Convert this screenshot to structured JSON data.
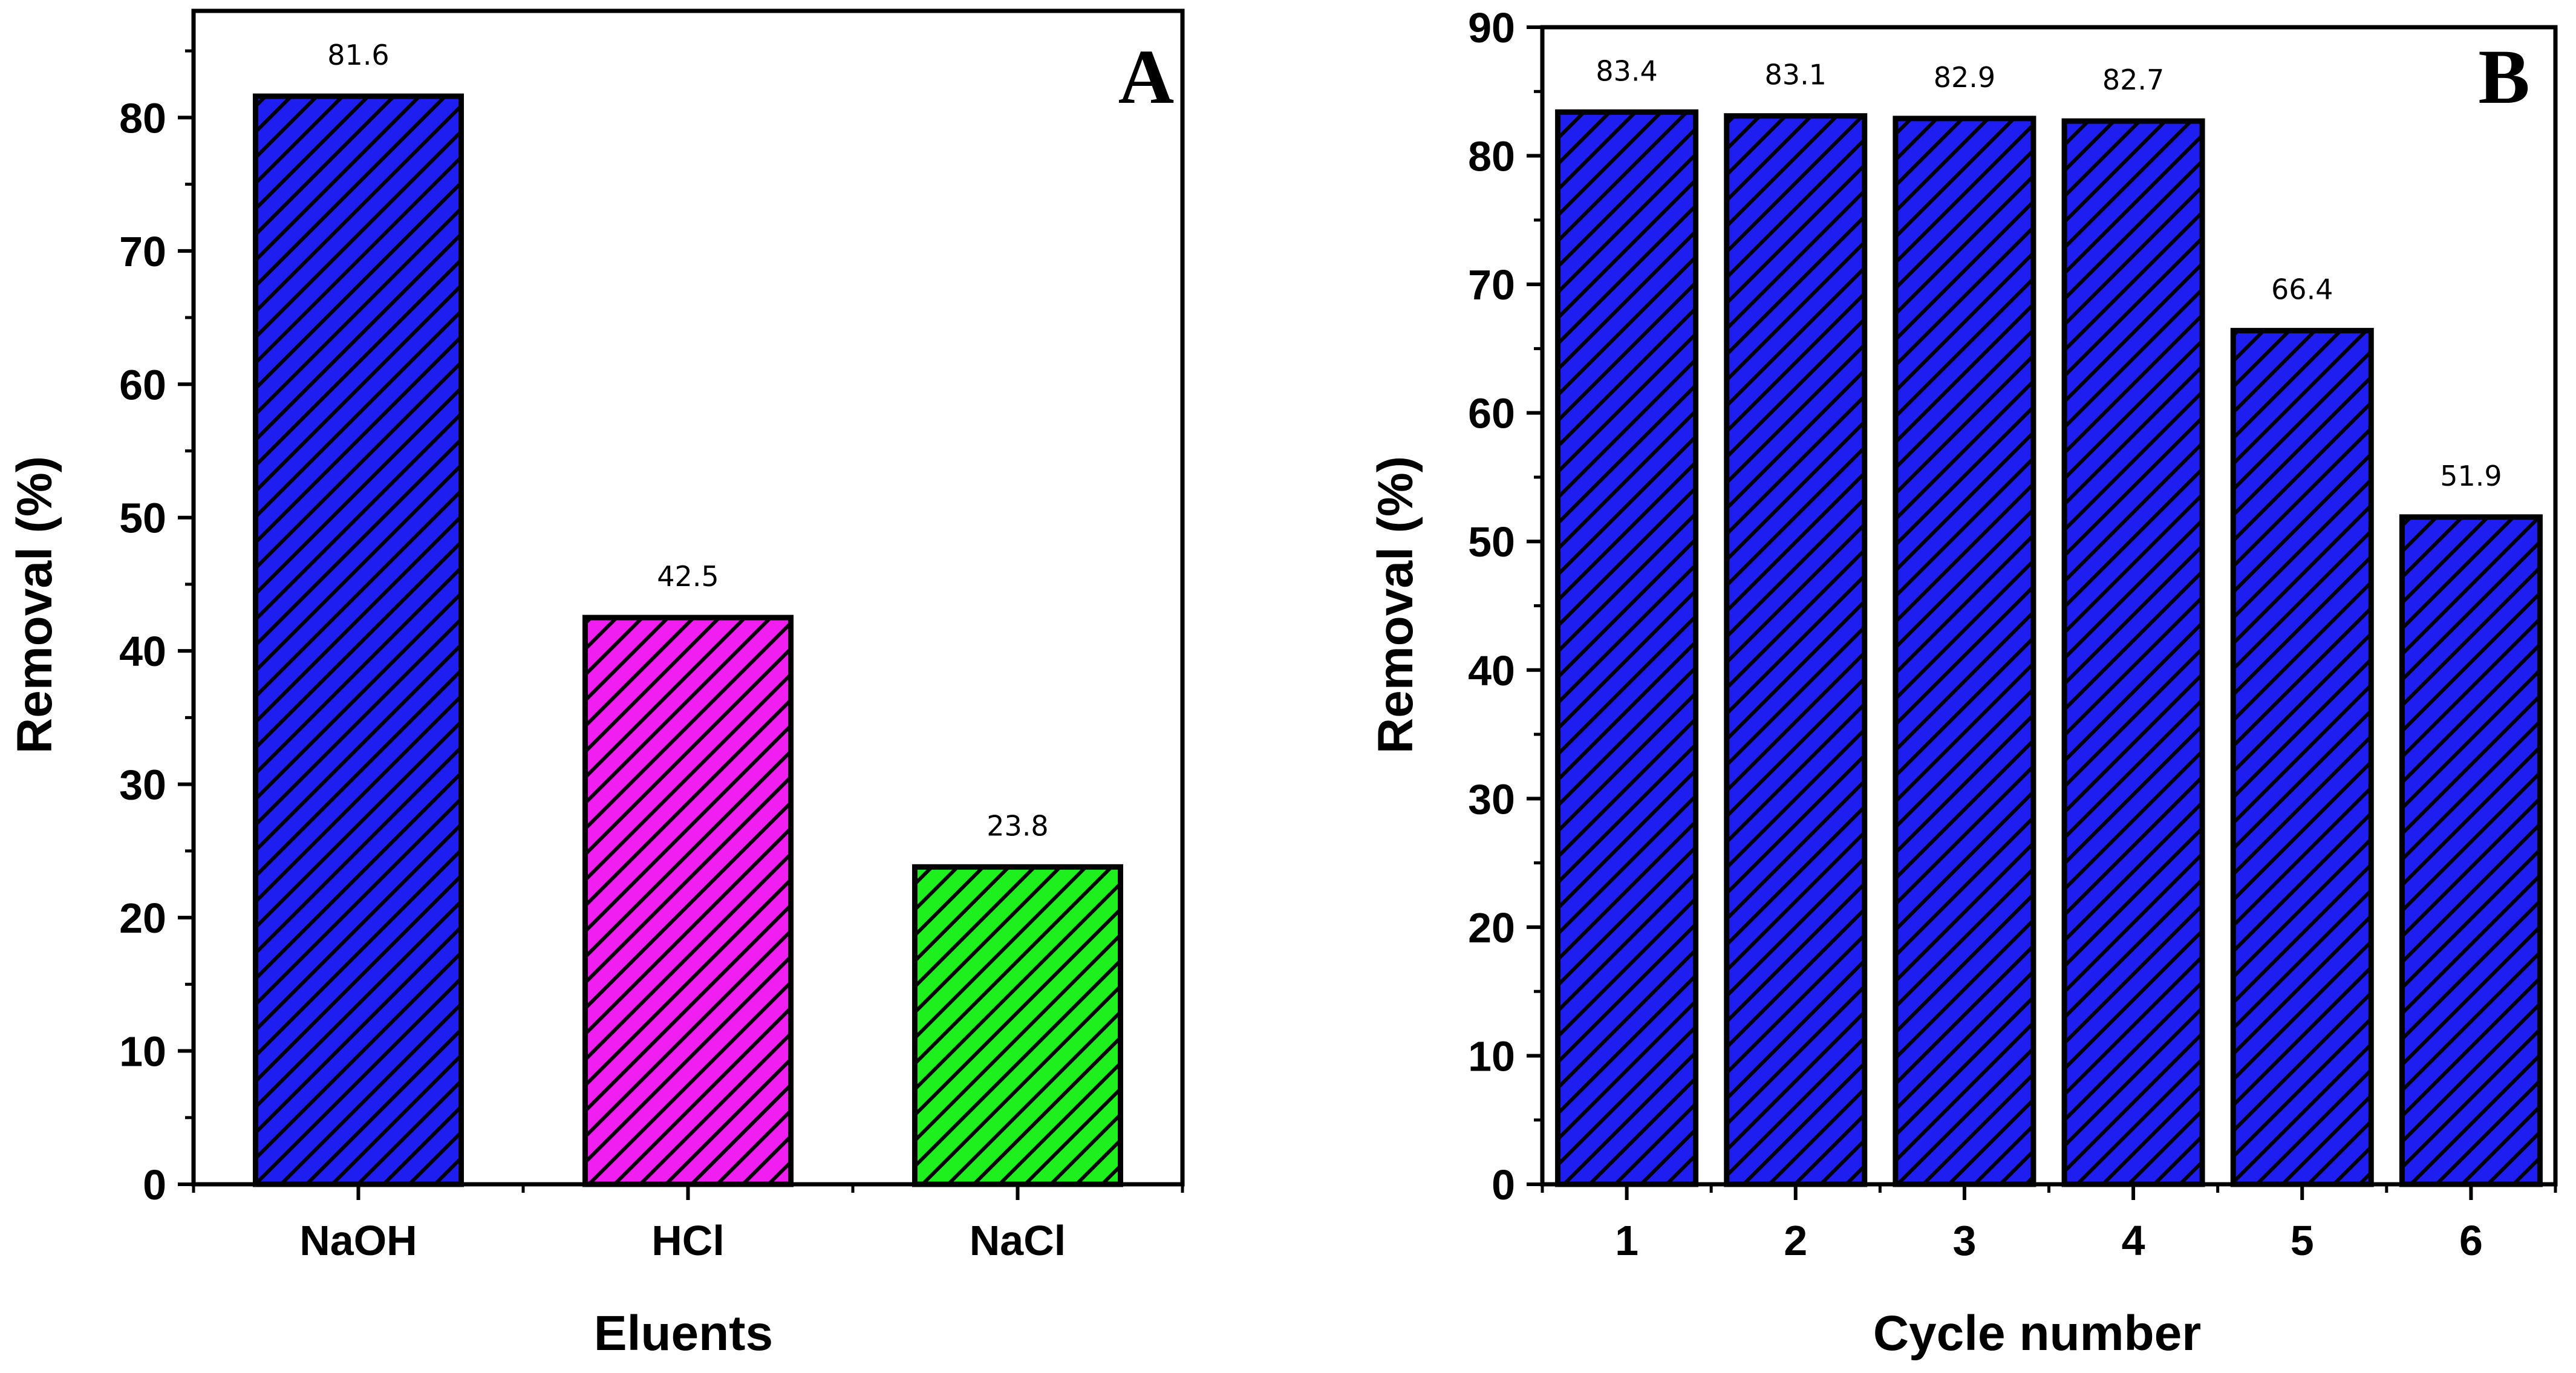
{
  "chart_data": [
    {
      "type": "bar",
      "panel": "A",
      "title": "",
      "xlabel": "Eluents",
      "ylabel": "Removal (%)",
      "ylim": [
        0,
        88
      ],
      "yticks": [
        0,
        10,
        20,
        30,
        40,
        50,
        60,
        70,
        80
      ],
      "categories": [
        "NaOH",
        "HCl",
        "NaCl"
      ],
      "values": [
        81.6,
        42.5,
        23.8
      ],
      "data_labels": [
        "81.6",
        "42.5",
        "23.8"
      ],
      "colors": [
        "#1e1ef0",
        "#f01ef0",
        "#1ef01e"
      ],
      "fill_pattern": "diagonal-hatch"
    },
    {
      "type": "bar",
      "panel": "B",
      "title": "",
      "xlabel": "Cycle number",
      "ylabel": "Removal (%)",
      "ylim": [
        0,
        90
      ],
      "yticks": [
        0,
        10,
        20,
        30,
        40,
        50,
        60,
        70,
        80,
        90
      ],
      "categories": [
        "1",
        "2",
        "3",
        "4",
        "5",
        "6"
      ],
      "values": [
        83.4,
        83.1,
        82.9,
        82.7,
        66.4,
        51.9
      ],
      "data_labels": [
        "83.4",
        "83.1",
        "82.9",
        "82.7",
        "66.4",
        "51.9"
      ],
      "colors": [
        "#1e1ef0",
        "#1e1ef0",
        "#1e1ef0",
        "#1e1ef0",
        "#1e1ef0",
        "#1e1ef0"
      ],
      "fill_pattern": "diagonal-hatch"
    }
  ]
}
